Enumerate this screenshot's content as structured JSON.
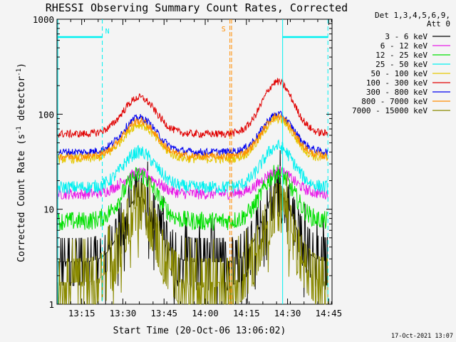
{
  "chart_data": {
    "type": "line",
    "title": "RHESSI Observing Summary Count Rates, Corrected",
    "xlabel": "Start Time (20-Oct-06 13:06:02)",
    "ylabel": "Corrected Count Rate (s",
    "ylabel_sup1": "-1",
    "ylabel_mid": " detector",
    "ylabel_sup2": "-1",
    "ylabel_end": ")",
    "y_scale": "log",
    "ylim": [
      1,
      1000
    ],
    "xlim": [
      13.1,
      14.77
    ],
    "yticks": [
      {
        "value": 1,
        "label": "1"
      },
      {
        "value": 10,
        "label": "10"
      },
      {
        "value": 100,
        "label": "100"
      },
      {
        "value": 1000,
        "label": "1000"
      }
    ],
    "xticks": [
      {
        "value": 13.25,
        "label": "13:15"
      },
      {
        "value": 13.5,
        "label": "13:30"
      },
      {
        "value": 13.75,
        "label": "13:45"
      },
      {
        "value": 14.0,
        "label": "14:00"
      },
      {
        "value": 14.25,
        "label": "14:15"
      },
      {
        "value": 14.5,
        "label": "14:30"
      },
      {
        "value": 14.75,
        "label": "14:45"
      }
    ],
    "legend_header": [
      "Det 1,3,4,5,6,9,",
      "Att 0"
    ],
    "legend_placement": "right",
    "series": [
      {
        "name": "3 - 6 keV",
        "color": "#000000",
        "base": 2.8,
        "peak1": 13.5,
        "peak2": 15.0,
        "noise": 0.22,
        "step": true
      },
      {
        "name": "6 - 12 keV",
        "color": "#e81ee8",
        "base": 14.5,
        "peak1": 24,
        "peak2": 25,
        "noise": 0.06
      },
      {
        "name": "12 - 25 keV",
        "color": "#00e000",
        "base": 7.5,
        "peak1": 23,
        "peak2": 24,
        "noise": 0.1
      },
      {
        "name": "25 - 50 keV",
        "color": "#00f0f0",
        "base": 17,
        "peak1": 40,
        "peak2": 46,
        "noise": 0.07
      },
      {
        "name": "50 - 100 keV",
        "color": "#e6c800",
        "base": 34,
        "peak1": 78,
        "peak2": 90,
        "noise": 0.05
      },
      {
        "name": "100 - 300 keV",
        "color": "#e00000",
        "base": 62,
        "peak1": 150,
        "peak2": 220,
        "noise": 0.04
      },
      {
        "name": "300 - 800 keV",
        "color": "#0000f0",
        "base": 40,
        "peak1": 92,
        "peak2": 100,
        "noise": 0.04
      },
      {
        "name": "800 - 7000 keV",
        "color": "#ff8c00",
        "base": 36,
        "peak1": 85,
        "peak2": 95,
        "noise": 0.04
      },
      {
        "name": "7000 - 15000 keV",
        "color": "#8a8a00",
        "base": 1.7,
        "peak1": 11,
        "peak2": 10.5,
        "noise": 0.35,
        "step": true
      }
    ],
    "flags": {
      "night_label": "N",
      "saa_label": "S",
      "night_color": "#00f0f0",
      "saa_color": "#ff8c00",
      "night_solid_x": [
        13.105,
        14.47
      ],
      "night_dashed_x": [
        13.375,
        14.745
      ],
      "night_bar_segments": [
        [
          13.105,
          13.375
        ],
        [
          14.47,
          14.745
        ]
      ],
      "night_bar_y": 650,
      "saa_x": [
        14.15,
        14.16
      ]
    },
    "timestamp": "17-Oct-2021 13:07"
  }
}
